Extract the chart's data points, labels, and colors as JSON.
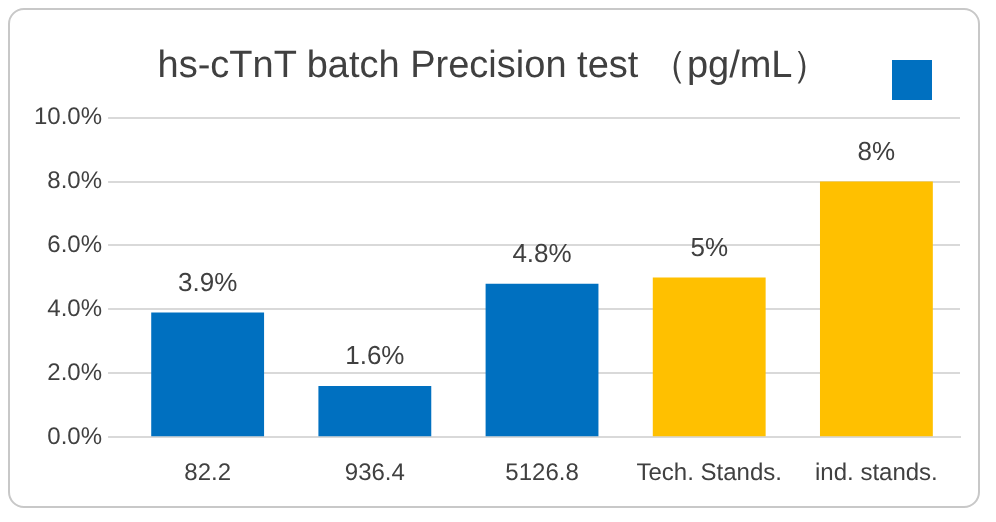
{
  "chart_data": {
    "type": "bar",
    "title": "hs-cTnT batch Precision test （pg/mL）",
    "categories": [
      "82.2",
      "936.4",
      "5126.8",
      "Tech. Stands.",
      "ind. stands."
    ],
    "values": [
      3.9,
      1.6,
      4.8,
      5,
      8
    ],
    "colors": [
      "#0070c0",
      "#0070c0",
      "#0070c0",
      "#ffc000",
      "#ffc000"
    ],
    "value_labels": [
      "3.9%",
      "1.6%",
      "4.8%",
      "5%",
      "8%"
    ],
    "ylim": [
      0,
      10
    ],
    "yticks": [
      {
        "value": 0,
        "label": "0.0%"
      },
      {
        "value": 2,
        "label": "2.0%"
      },
      {
        "value": 4,
        "label": "4.0%"
      },
      {
        "value": 6,
        "label": "6.0%"
      },
      {
        "value": 8,
        "label": "8.0%"
      },
      {
        "value": 10,
        "label": "10.0%"
      }
    ],
    "grid": "y"
  }
}
